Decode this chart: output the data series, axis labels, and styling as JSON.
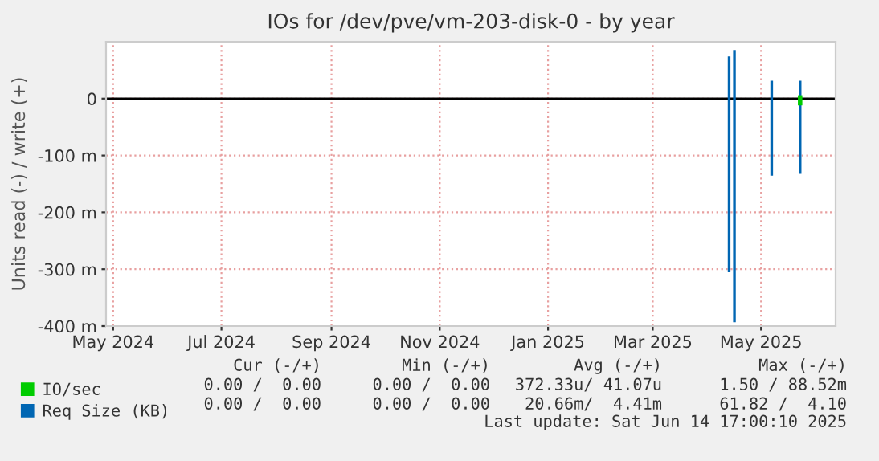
{
  "chart_data": {
    "type": "line",
    "title": "IOs for /dev/pve/vm-203-disk-0 - by year",
    "ylabel": "Units read (-) / write (+)",
    "series": [
      {
        "name": "Req Size (KB)",
        "color": "#0066b3",
        "x": [
          "2025-04-13",
          "2025-04-13",
          "2025-04-14",
          "2025-04-16",
          "2025-04-16",
          "2025-04-20",
          "2025-05-07",
          "2025-05-07",
          "2025-05-15",
          "2025-05-23",
          "2025-05-23"
        ],
        "values": [
          -303,
          72,
          null,
          -391,
          83,
          null,
          -133,
          29,
          null,
          -130,
          29
        ]
      },
      {
        "name": "IO/sec",
        "color": "#00cc00",
        "x": [
          "2025-05-23",
          "2025-05-23"
        ],
        "values": [
          -8,
          2
        ]
      }
    ],
    "xlim": [
      "2024-04-27",
      "2025-06-12"
    ],
    "xticks": [
      {
        "value": "2024-05-01",
        "label": "May 2024"
      },
      {
        "value": "2024-07-01",
        "label": "Jul 2024"
      },
      {
        "value": "2024-09-01",
        "label": "Sep 2024"
      },
      {
        "value": "2024-11-01",
        "label": "Nov 2024"
      },
      {
        "value": "2025-01-01",
        "label": "Jan 2025"
      },
      {
        "value": "2025-03-01",
        "label": "Mar 2025"
      },
      {
        "value": "2025-05-01",
        "label": "May 2025"
      }
    ],
    "ylim": [
      -400,
      100
    ],
    "yticks": [
      {
        "value": -400,
        "label": "-400 m"
      },
      {
        "value": -300,
        "label": "-300 m"
      },
      {
        "value": -200,
        "label": "-200 m"
      },
      {
        "value": -100,
        "label": "-100 m"
      },
      0
    ],
    "ref_lines": [
      {
        "axis": "y",
        "value": 0,
        "color": "#000000"
      }
    ],
    "grid": true,
    "legend": "bottom",
    "marker": "none",
    "line_style": "solid",
    "annotations": [
      "Cur (-/+)",
      "Min (-/+)",
      "Avg (-/+)",
      "Max (-/+)",
      "0.00 /  0.00",
      "0.00 /  0.00",
      "372.33u/ 41.07u",
      "1.50 / 88.52m",
      "0.00 /  0.00",
      "0.00 /  0.00",
      "20.66m/  4.41m",
      "61.82 /  4.10",
      "Last update: Sat Jun 14 17:00:10 2025"
    ]
  }
}
